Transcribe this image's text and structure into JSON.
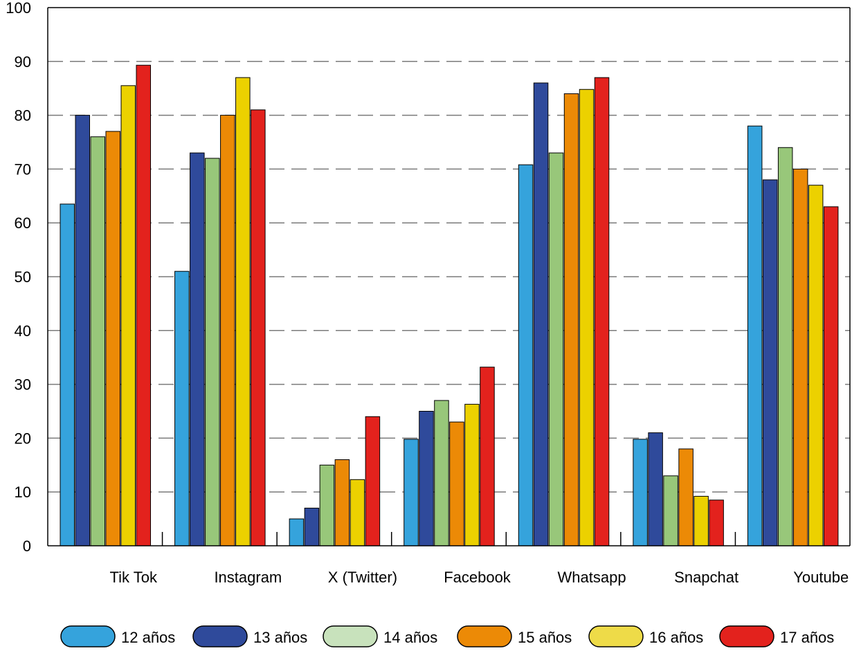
{
  "chart_data": {
    "type": "bar",
    "categories": [
      "Tik Tok",
      "Instagram",
      "X (Twitter)",
      "Facebook",
      "Whatsapp",
      "Snapchat",
      "Youtube"
    ],
    "series": [
      {
        "name": "12 años",
        "color": "#35a3dc",
        "legend_color": "#35a3dc",
        "values": [
          63.5,
          51,
          5,
          19.8,
          70.8,
          19.8,
          78
        ]
      },
      {
        "name": "13 años",
        "color": "#2f4a9b",
        "legend_color": "#2f4a9b",
        "values": [
          80,
          73,
          7,
          25,
          86,
          21,
          68
        ]
      },
      {
        "name": "14 años",
        "color": "#98c77a",
        "legend_color": "#c8e2bc",
        "values": [
          76,
          72,
          15,
          27,
          73,
          13,
          74
        ]
      },
      {
        "name": "15 años",
        "color": "#ec8a06",
        "legend_color": "#ec8a06",
        "values": [
          77,
          80,
          16,
          23,
          84,
          18,
          70
        ]
      },
      {
        "name": "16 años",
        "color": "#ecd100",
        "legend_color": "#eedb48",
        "values": [
          85.5,
          87,
          12.3,
          26.3,
          84.8,
          9.2,
          67
        ]
      },
      {
        "name": "17 años",
        "color": "#e3221d",
        "legend_color": "#e3221d",
        "values": [
          89.3,
          81,
          24,
          33.2,
          87,
          8.5,
          63
        ]
      }
    ],
    "ylim": [
      0,
      100
    ],
    "yticks": [
      0,
      10,
      20,
      30,
      40,
      50,
      60,
      70,
      80,
      90,
      100
    ],
    "grid": true,
    "legend_position": "bottom"
  }
}
